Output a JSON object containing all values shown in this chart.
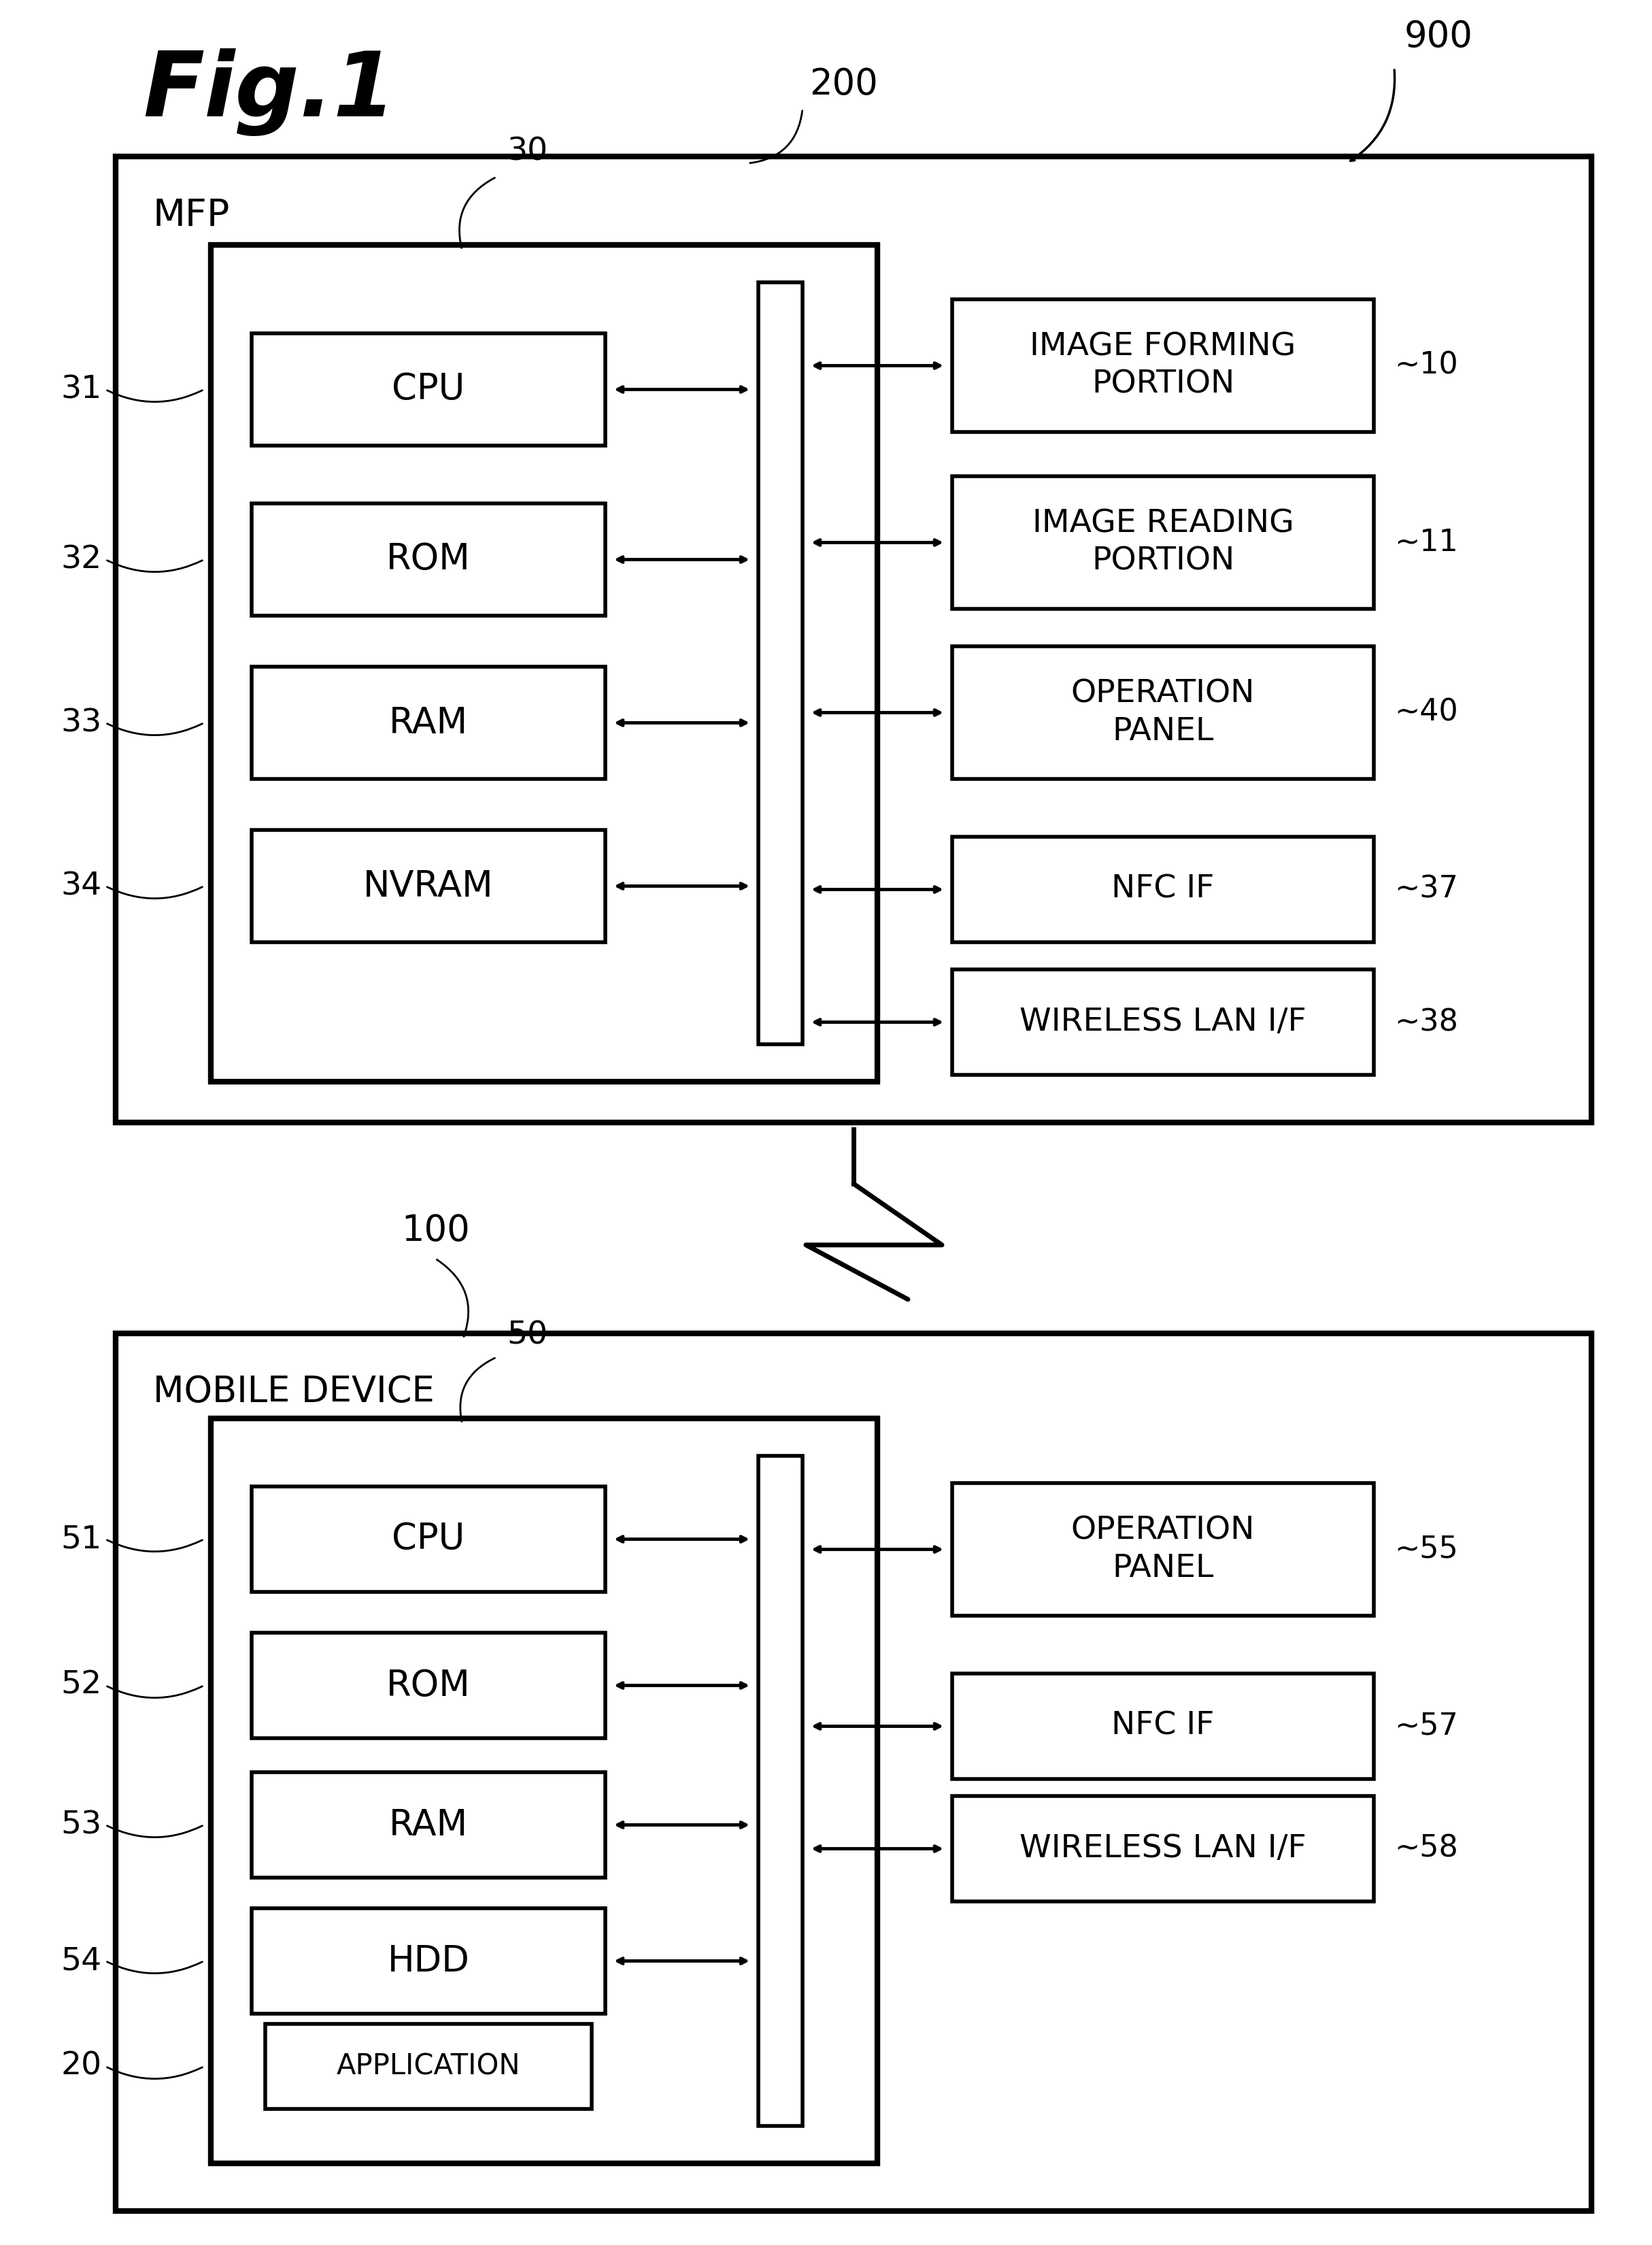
{
  "fig_title": "Fig.1",
  "bg_color": "#ffffff",
  "mfp_label": "MFP",
  "mobile_label": "MOBILE DEVICE",
  "label_200": "200",
  "label_900": "900",
  "label_100": "100",
  "label_30": "30",
  "label_50": "50",
  "mfp_components": [
    {
      "label": "CPU",
      "ref": "31"
    },
    {
      "label": "ROM",
      "ref": "32"
    },
    {
      "label": "RAM",
      "ref": "33"
    },
    {
      "label": "NVRAM",
      "ref": "34"
    }
  ],
  "mfp_right_components": [
    {
      "label": "IMAGE FORMING\nPORTION",
      "ref": "10",
      "two_line": true
    },
    {
      "label": "IMAGE READING\nPORTION",
      "ref": "11",
      "two_line": true
    },
    {
      "label": "OPERATION\nPANEL",
      "ref": "40",
      "two_line": true
    },
    {
      "label": "NFC IF",
      "ref": "37",
      "two_line": false
    },
    {
      "label": "WIRELESS LAN I/F",
      "ref": "38",
      "two_line": false
    }
  ],
  "mobile_components": [
    {
      "label": "CPU",
      "ref": "51"
    },
    {
      "label": "ROM",
      "ref": "52"
    },
    {
      "label": "RAM",
      "ref": "53"
    },
    {
      "label": "HDD",
      "ref": "54"
    }
  ],
  "mobile_right_components": [
    {
      "label": "OPERATION\nPANEL",
      "ref": "55",
      "two_line": true
    },
    {
      "label": "NFC IF",
      "ref": "57",
      "two_line": false
    },
    {
      "label": "WIRELESS LAN I/F",
      "ref": "58",
      "two_line": false
    }
  ],
  "app_label": "APPLICATION",
  "app_ref": "20"
}
